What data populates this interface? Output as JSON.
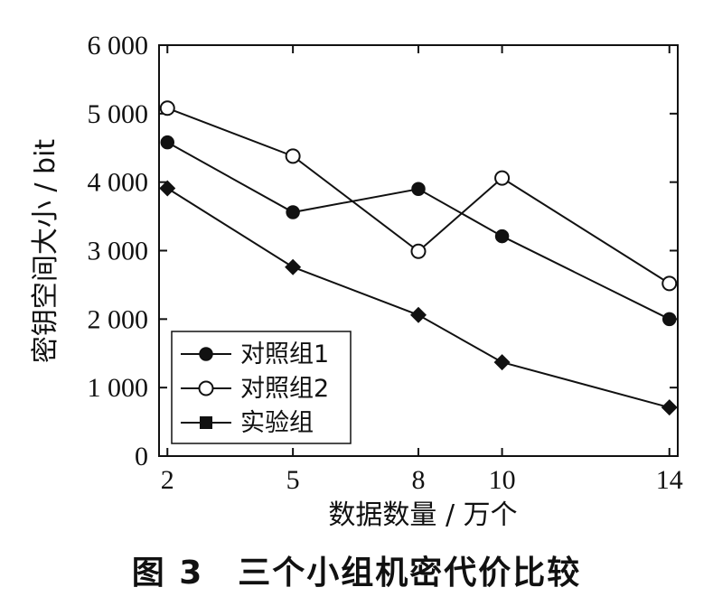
{
  "figure_caption": "图 3　三个小组机密代价比较",
  "chart_data": {
    "type": "line",
    "xlabel": "数据数量 / 万个",
    "ylabel": "密钥空间大小 / bit",
    "x": [
      2,
      5,
      8,
      10,
      14
    ],
    "x_tick_labels": [
      "2",
      "5",
      "8",
      "10",
      "14"
    ],
    "xlim": [
      1.8,
      14.2
    ],
    "ylim": [
      0,
      6000
    ],
    "y_ticks": [
      0,
      1000,
      2000,
      3000,
      4000,
      5000,
      6000
    ],
    "y_tick_labels": [
      "0",
      "1 000",
      "2 000",
      "3 000",
      "4 000",
      "5 000",
      "6 000"
    ],
    "grid": false,
    "legend_position": "bottom-left",
    "series": [
      {
        "name": "对照组1",
        "marker": "filled-circle",
        "x": [
          2,
          5,
          8,
          10,
          14
        ],
        "values": [
          4580,
          3560,
          3900,
          3210,
          2000
        ]
      },
      {
        "name": "对照组2",
        "marker": "open-circle",
        "x": [
          2,
          5,
          8,
          10,
          14
        ],
        "values": [
          5080,
          4380,
          2990,
          4060,
          2520
        ]
      },
      {
        "name": "实验组",
        "marker": "filled-diamond",
        "legend_marker": "filled-square",
        "x": [
          2,
          5,
          8,
          10,
          14
        ],
        "values": [
          3910,
          2760,
          2060,
          1370,
          710
        ]
      }
    ],
    "colors": {
      "line": "#111111",
      "marker_fill": "#111111",
      "open_marker_fill": "#ffffff"
    }
  }
}
